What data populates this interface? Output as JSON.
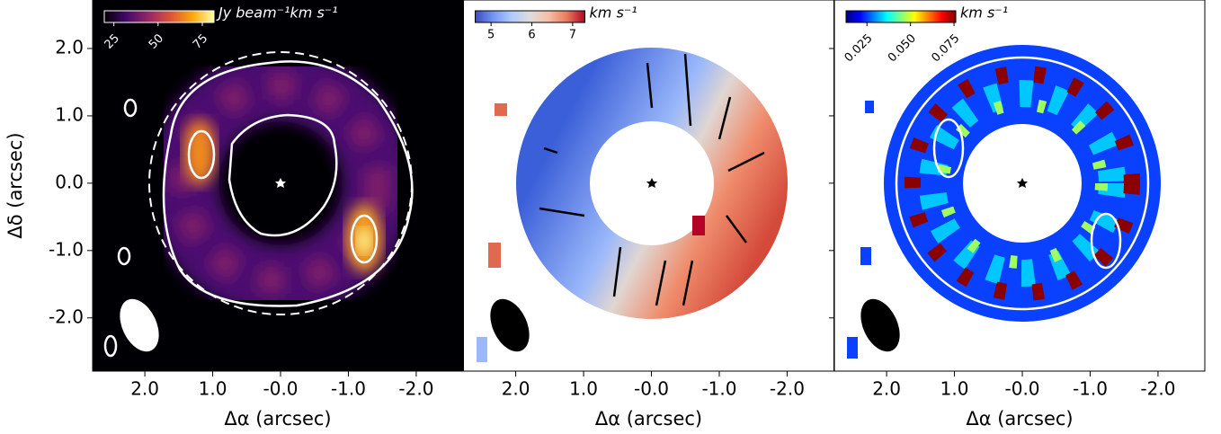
{
  "chart_data": [
    {
      "type": "image",
      "xlabel": "Δα (arcsec)",
      "ylabel": "Δδ (arcsec)",
      "show_yticklabels": true,
      "xlim": [
        2.77,
        -2.69
      ],
      "ylim": [
        -2.79,
        2.72
      ],
      "xticks": [
        {
          "value": 2,
          "label": "2.0"
        },
        {
          "value": 1,
          "label": "1.0"
        },
        {
          "value": 0,
          "label": "-0.0"
        },
        {
          "value": -1,
          "label": "-1.0"
        },
        {
          "value": -2,
          "label": "-2.0"
        }
      ],
      "yticks": [
        {
          "value": 2,
          "label": "2.0"
        },
        {
          "value": 1,
          "label": "1.0"
        },
        {
          "value": 0,
          "label": "0.0"
        },
        {
          "value": -1,
          "label": "-1.0"
        },
        {
          "value": -2,
          "label": "-2.0"
        }
      ],
      "colorbar": {
        "label": "Jy beam⁻¹km s⁻¹",
        "lim": [
          19.6,
          81.6
        ],
        "ticks": [
          25,
          50,
          75
        ],
        "tick_rotation": -45,
        "text_color": "#ffffff",
        "colors": [
          "#000004",
          "#420a68",
          "#932667",
          "#dd513a",
          "#fca50a",
          "#fcffa4"
        ]
      }
    },
    {
      "type": "image",
      "xlabel": "Δα (arcsec)",
      "show_yticklabels": false,
      "xlim": [
        2.77,
        -2.69
      ],
      "ylim": [
        -2.79,
        2.72
      ],
      "xticks": [
        {
          "value": 2,
          "label": "2.0"
        },
        {
          "value": 1,
          "label": "1.0"
        },
        {
          "value": 0,
          "label": "-0.0"
        },
        {
          "value": -1,
          "label": "-1.0"
        },
        {
          "value": -2,
          "label": "-2.0"
        }
      ],
      "yticks": [
        2,
        1,
        0,
        -1,
        -2
      ],
      "colorbar": {
        "label": "km s⁻¹",
        "lim": [
          4.61,
          7.3
        ],
        "ticks": [
          5,
          6,
          7
        ],
        "tick_rotation": 0,
        "text_color": "#000000",
        "colors": [
          "#3b4cc0",
          "#7396f5",
          "#b0cbfc",
          "#dddcdc",
          "#f6bfa6",
          "#ea7b60",
          "#b40426"
        ]
      }
    },
    {
      "type": "image",
      "xlabel": "Δα (arcsec)",
      "show_yticklabels": false,
      "xlim": [
        2.77,
        -2.69
      ],
      "ylim": [
        -2.79,
        2.72
      ],
      "xticks": [
        {
          "value": 2,
          "label": "2.0"
        },
        {
          "value": 1,
          "label": "1.0"
        },
        {
          "value": 0,
          "label": "-0.0"
        },
        {
          "value": -1,
          "label": "-1.0"
        },
        {
          "value": -2,
          "label": "-2.0"
        }
      ],
      "yticks": [
        2,
        1,
        0,
        -1,
        -2
      ],
      "colorbar": {
        "label": "km s⁻¹",
        "lim": [
          0.013,
          0.076
        ],
        "ticks": [
          0.025,
          0.05,
          0.075
        ],
        "tick_labels": [
          "0.025",
          "0.050",
          "0.075"
        ],
        "tick_rotation": -45,
        "text_color": "#000000",
        "colors": [
          "#00007f",
          "#0000ff",
          "#007fff",
          "#00ffff",
          "#7fff7f",
          "#ffff00",
          "#ff7f00",
          "#ff0000",
          "#7f0000"
        ]
      }
    }
  ]
}
